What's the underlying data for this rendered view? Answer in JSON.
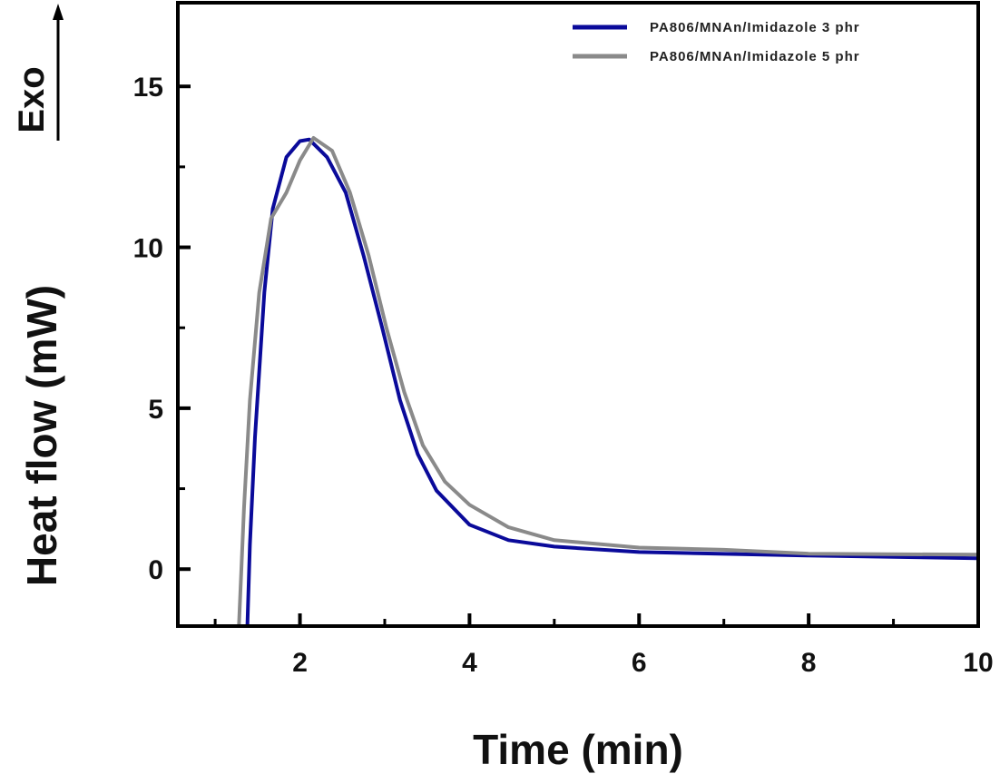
{
  "chart_data": {
    "type": "line",
    "title": "",
    "xlabel": "Time (min)",
    "ylabel": "Heat flow (mW)",
    "annotation": "Exo",
    "xlim": [
      0.56,
      10
    ],
    "ylim": [
      -1.77,
      17.6
    ],
    "xticks": [
      2,
      4,
      6,
      8,
      10
    ],
    "xminor": [
      1,
      3,
      5,
      7,
      9
    ],
    "yticks": [
      0,
      5,
      10,
      15
    ],
    "yminor": [
      2.5,
      7.5,
      12.5
    ],
    "grid": false,
    "legend_position": "top-right",
    "series": [
      {
        "name": "PA806/MNAn/Imidazole 3 phr",
        "color": "#0a0a9a",
        "x": [
          1.38,
          1.41,
          1.47,
          1.58,
          1.68,
          1.84,
          2.0,
          2.11,
          2.32,
          2.54,
          2.75,
          2.97,
          3.18,
          3.39,
          3.61,
          4.0,
          4.46,
          5.0,
          6.0,
          8.0,
          10.0
        ],
        "y": [
          -1.77,
          0.76,
          4.1,
          8.6,
          11.2,
          12.8,
          13.3,
          13.35,
          12.8,
          11.7,
          9.75,
          7.5,
          5.25,
          3.57,
          2.44,
          1.38,
          0.9,
          0.7,
          0.53,
          0.42,
          0.34
        ]
      },
      {
        "name": "PA806/MNAn/Imidazole 5 phr",
        "color": "#8a8a8a",
        "x": [
          1.28,
          1.34,
          1.41,
          1.52,
          1.66,
          1.84,
          2.0,
          2.16,
          2.38,
          2.59,
          2.81,
          3.02,
          3.23,
          3.45,
          3.71,
          4.0,
          4.46,
          5.0,
          6.0,
          7.0,
          8.0,
          10.0
        ],
        "y": [
          -1.77,
          1.9,
          5.25,
          8.6,
          10.9,
          11.7,
          12.7,
          13.4,
          13.0,
          11.7,
          9.75,
          7.5,
          5.5,
          3.85,
          2.72,
          2.0,
          1.3,
          0.9,
          0.67,
          0.6,
          0.48,
          0.45
        ]
      }
    ]
  }
}
